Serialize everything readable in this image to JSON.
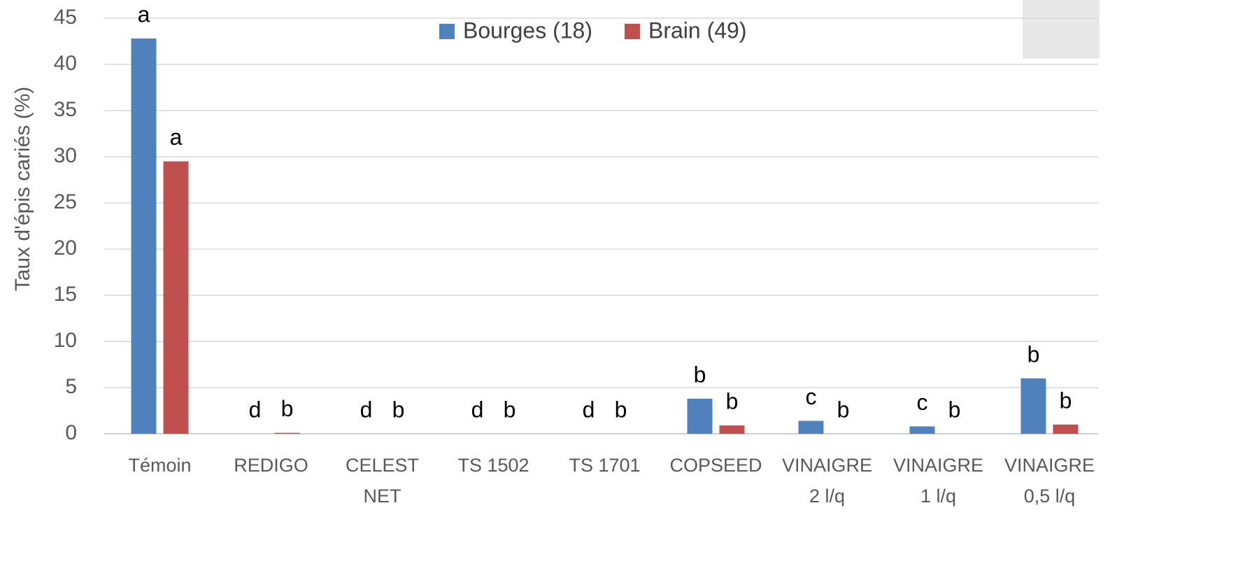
{
  "chart_data": {
    "type": "bar",
    "y_label": "Taux d'épis cariés (%)",
    "categories": [
      [
        "Témoin"
      ],
      [
        "REDIGO"
      ],
      [
        "CELEST",
        "NET"
      ],
      [
        "TS 1502"
      ],
      [
        "TS 1701"
      ],
      [
        "COPSEED"
      ],
      [
        "VINAIGRE",
        "2 l/q"
      ],
      [
        "VINAIGRE",
        "1 l/q"
      ],
      [
        "VINAIGRE",
        "0,5 l/q"
      ]
    ],
    "series": [
      {
        "name": "Bourges (18)",
        "color": "#4f81bd",
        "values": [
          42.8,
          0,
          0,
          0,
          0,
          3.8,
          1.4,
          0.8,
          6.0
        ],
        "letters": [
          "a",
          "d",
          "d",
          "d",
          "d",
          "b",
          "c",
          "c",
          "b"
        ]
      },
      {
        "name": "Brain (49)",
        "color": "#c0504d",
        "values": [
          29.5,
          0.1,
          0,
          0,
          0,
          0.9,
          0,
          0,
          1.0
        ],
        "letters": [
          "a",
          "b",
          "b",
          "b",
          "b",
          "b",
          "b",
          "b",
          "b"
        ]
      }
    ],
    "ylim": [
      0,
      45
    ],
    "yticks": [
      0,
      5,
      10,
      15,
      20,
      25,
      30,
      35,
      40,
      45
    ],
    "grid": true
  }
}
